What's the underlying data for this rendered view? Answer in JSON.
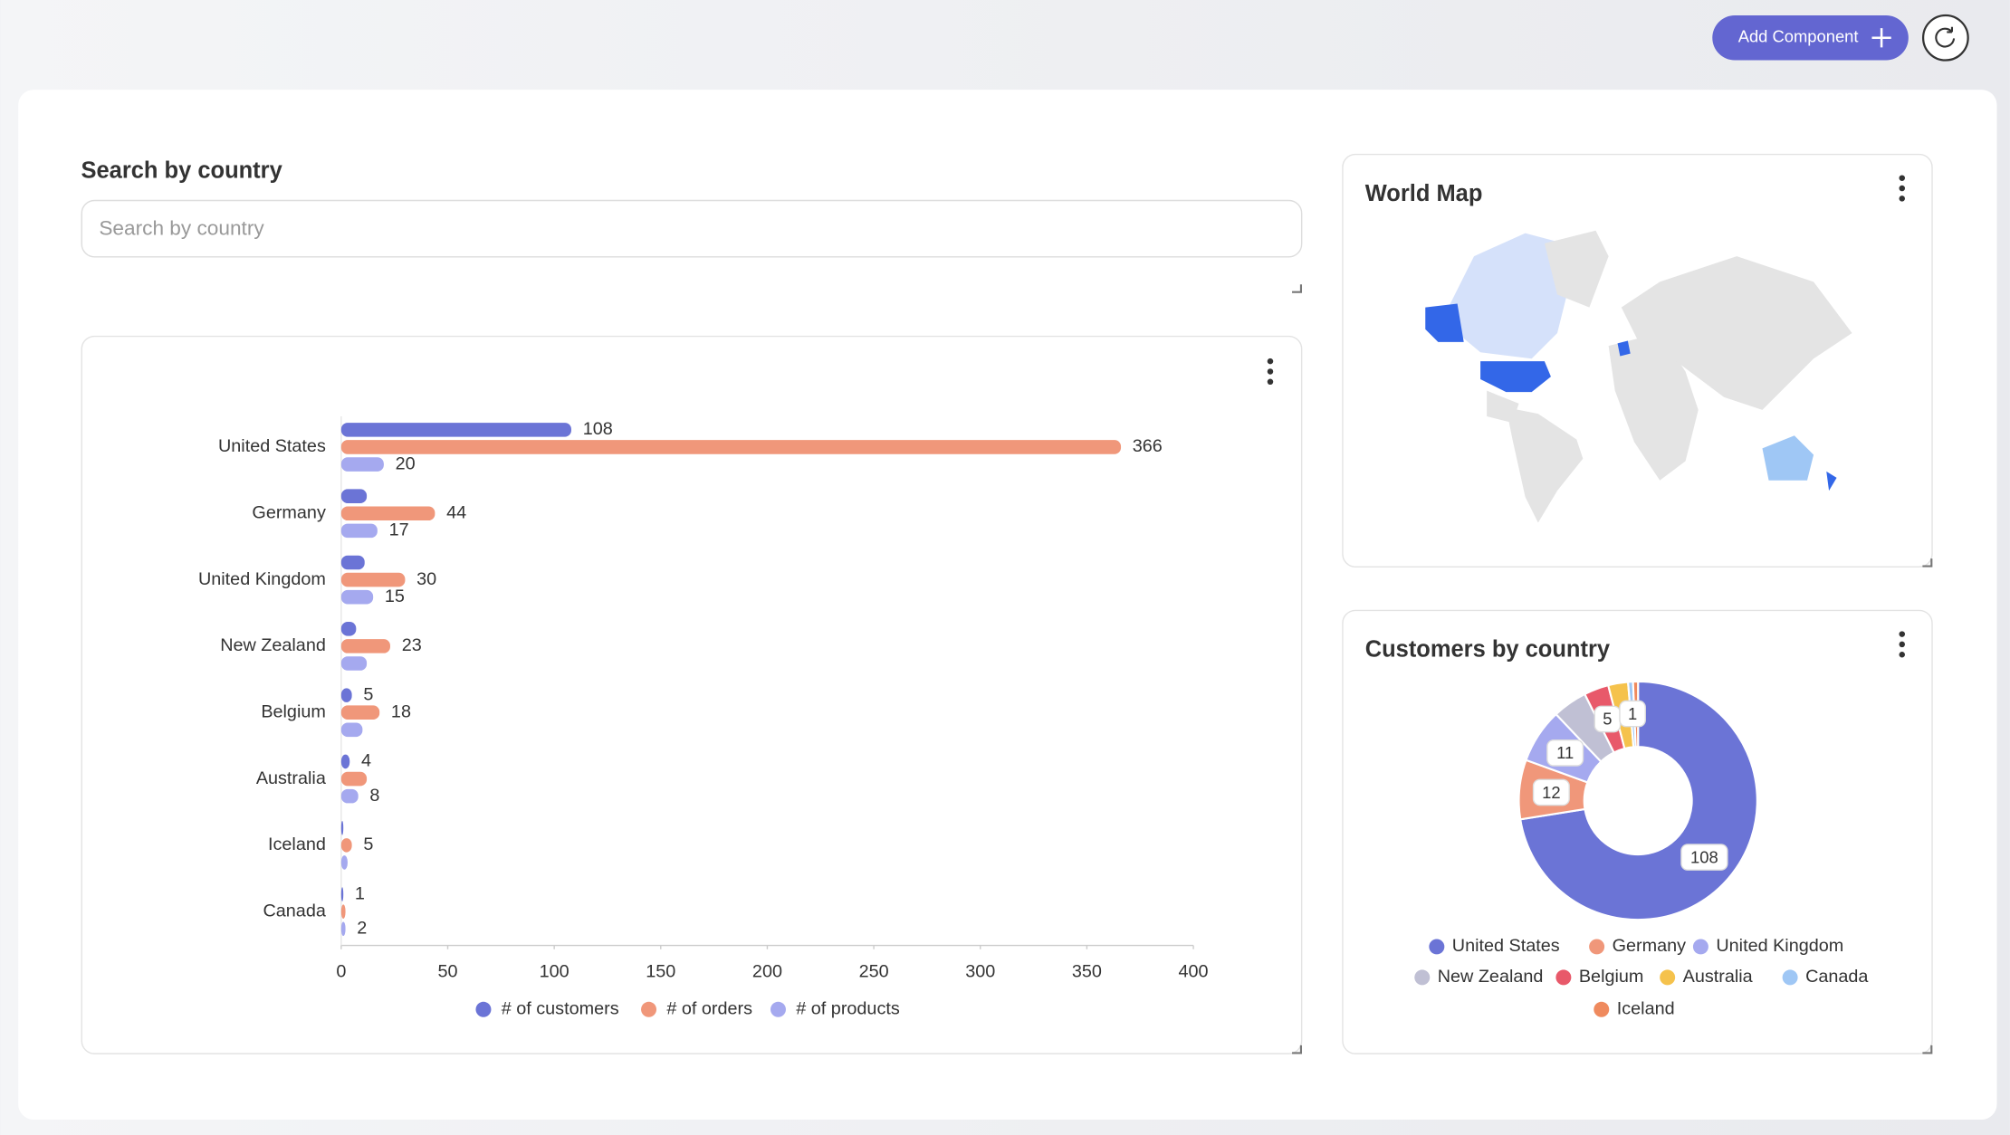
{
  "header": {
    "button": "Add Component"
  },
  "search": {
    "title": "Search by country",
    "placeholder": "Search by country"
  },
  "map": {
    "title": "World Map"
  },
  "chart_data": [
    {
      "type": "bar",
      "orientation": "horizontal",
      "categories": [
        "United States",
        "Germany",
        "United Kingdom",
        "New Zealand",
        "Belgium",
        "Australia",
        "Iceland",
        "Canada"
      ],
      "series": [
        {
          "name": "# of customers",
          "color": "#6b74d6",
          "values": [
            108,
            12,
            11,
            7,
            5,
            4,
            1,
            1
          ],
          "value_labels": [
            "108",
            null,
            null,
            null,
            "5",
            "4",
            null,
            "1"
          ]
        },
        {
          "name": "# of orders",
          "color": "#f0977a",
          "values": [
            366,
            44,
            30,
            23,
            18,
            12,
            5,
            2
          ],
          "value_labels": [
            "366",
            "44",
            "30",
            "23",
            "18",
            null,
            "5",
            null
          ]
        },
        {
          "name": "# of products",
          "color": "#a5a9ef",
          "values": [
            20,
            17,
            15,
            12,
            10,
            8,
            3,
            2
          ],
          "value_labels": [
            "20",
            "17",
            "15",
            null,
            null,
            "8",
            null,
            "2"
          ]
        }
      ],
      "xlim": [
        0,
        400
      ],
      "xticks": [
        0,
        50,
        100,
        150,
        200,
        250,
        300,
        350,
        400
      ],
      "legend": "bottom"
    },
    {
      "type": "donut",
      "title": "Customers by country",
      "categories": [
        "United States",
        "Germany",
        "United Kingdom",
        "New Zealand",
        "Belgium",
        "Australia",
        "Canada",
        "Iceland"
      ],
      "values": [
        108,
        12,
        11,
        7,
        5,
        4,
        1,
        1
      ],
      "value_labels": [
        "108",
        "12",
        "11",
        null,
        "5",
        null,
        "1",
        null
      ],
      "colors": [
        "#6b74d6",
        "#f0977a",
        "#a5a9ef",
        "#c0c0d4",
        "#e8596a",
        "#f5c24c",
        "#9fc7f5",
        "#ef8a5e"
      ],
      "legend": "bottom"
    }
  ]
}
